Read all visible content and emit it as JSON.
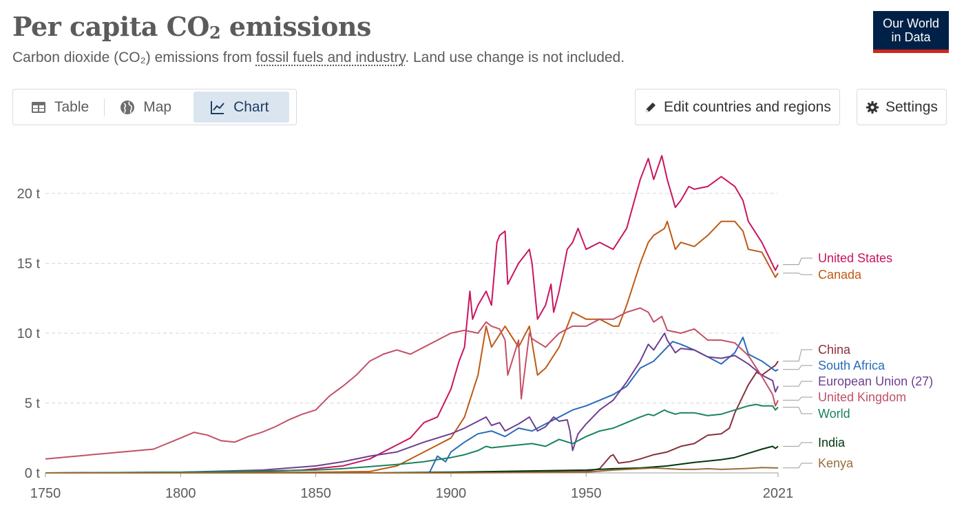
{
  "header": {
    "title_main": "Per capita CO",
    "title_sub": "2",
    "title_tail": " emissions",
    "subtitle_pre": "Carbon dioxide (CO₂) emissions from ",
    "subtitle_link": "fossil fuels and industry",
    "subtitle_post": ". Land use change is not included.",
    "logo_line1": "Our World",
    "logo_line2": "in Data"
  },
  "tabs": [
    {
      "label": "Table",
      "icon": "table-icon"
    },
    {
      "label": "Map",
      "icon": "globe-icon"
    },
    {
      "label": "Chart",
      "icon": "line-chart-icon",
      "active": true
    }
  ],
  "toolbar": {
    "edit_label": "Edit countries and regions",
    "settings_label": "Settings"
  },
  "chart_data": {
    "type": "line",
    "title": "Per capita CO₂ emissions",
    "xlim": [
      1750,
      2021
    ],
    "ylim": [
      0,
      23
    ],
    "x_ticks": [
      {
        "v": 1750,
        "label": "1750"
      },
      {
        "v": 1800,
        "label": "1800"
      },
      {
        "v": 1850,
        "label": "1850"
      },
      {
        "v": 1900,
        "label": "1900"
      },
      {
        "v": 1950,
        "label": "1950"
      },
      {
        "v": 2021,
        "label": "2021"
      }
    ],
    "y_ticks": [
      {
        "v": 0,
        "label": "0 t"
      },
      {
        "v": 5,
        "label": "5 t"
      },
      {
        "v": 10,
        "label": "10 t"
      },
      {
        "v": 15,
        "label": "15 t"
      },
      {
        "v": 20,
        "label": "20 t"
      }
    ],
    "grid": "horizontal dashed",
    "legend": "right, labels at line ends",
    "series": [
      {
        "name": "United States",
        "color": "#c9145f",
        "x": [
          1800,
          1830,
          1845,
          1860,
          1870,
          1880,
          1885,
          1890,
          1895,
          1900,
          1903,
          1905,
          1907,
          1908,
          1910,
          1913,
          1915,
          1917,
          1918,
          1920,
          1921,
          1925,
          1929,
          1930,
          1932,
          1935,
          1937,
          1938,
          1940,
          1943,
          1945,
          1947,
          1950,
          1955,
          1960,
          1965,
          1970,
          1973,
          1975,
          1978,
          1980,
          1983,
          1985,
          1988,
          1990,
          1995,
          2000,
          2005,
          2008,
          2010,
          2015,
          2020,
          2021
        ],
        "y": [
          0.05,
          0.1,
          0.2,
          0.5,
          1.0,
          2.0,
          2.5,
          3.6,
          4.0,
          6.0,
          8.0,
          9.0,
          13.0,
          11.0,
          12.0,
          13.0,
          12.0,
          16.5,
          17.0,
          17.3,
          13.5,
          15.0,
          16.0,
          15.0,
          11.0,
          12.0,
          13.5,
          11.5,
          13.0,
          16.0,
          16.5,
          17.5,
          16.0,
          16.5,
          16.0,
          17.5,
          21.0,
          22.5,
          21.0,
          22.7,
          21.0,
          19.0,
          19.5,
          20.5,
          20.3,
          20.5,
          21.2,
          20.5,
          19.5,
          18.0,
          16.5,
          14.5,
          14.9
        ]
      },
      {
        "name": "Canada",
        "color": "#be5915",
        "x": [
          1800,
          1850,
          1870,
          1880,
          1890,
          1900,
          1905,
          1910,
          1913,
          1915,
          1920,
          1925,
          1929,
          1932,
          1935,
          1940,
          1945,
          1950,
          1955,
          1960,
          1962,
          1965,
          1970,
          1973,
          1975,
          1979,
          1980,
          1983,
          1985,
          1990,
          1995,
          2000,
          2005,
          2008,
          2010,
          2015,
          2020,
          2021
        ],
        "y": [
          0.0,
          0.05,
          0.1,
          0.5,
          1.5,
          2.5,
          4.0,
          7.0,
          10.5,
          9.0,
          10.5,
          9.0,
          10.5,
          7.0,
          7.5,
          9.0,
          11.5,
          11.0,
          11.0,
          10.5,
          10.5,
          12.0,
          15.0,
          16.5,
          17.0,
          17.5,
          18.0,
          16.0,
          16.5,
          16.2,
          17.0,
          18.0,
          18.0,
          17.3,
          16.0,
          15.8,
          14.0,
          14.3
        ]
      },
      {
        "name": "China",
        "color": "#883039",
        "x": [
          1750,
          1900,
          1950,
          1955,
          1959,
          1960,
          1962,
          1966,
          1970,
          1975,
          1980,
          1985,
          1990,
          1995,
          2000,
          2003,
          2005,
          2010,
          2013,
          2015,
          2020,
          2021
        ],
        "y": [
          0.0,
          0.0,
          0.1,
          0.3,
          1.2,
          1.3,
          0.7,
          0.8,
          1.0,
          1.3,
          1.5,
          1.9,
          2.1,
          2.7,
          2.8,
          3.2,
          4.3,
          6.3,
          7.2,
          7.0,
          7.7,
          8.0
        ]
      },
      {
        "name": "South Africa",
        "color": "#286bbb",
        "x": [
          1750,
          1892,
          1895,
          1898,
          1900,
          1905,
          1910,
          1915,
          1920,
          1925,
          1930,
          1935,
          1940,
          1945,
          1950,
          1955,
          1960,
          1965,
          1970,
          1975,
          1980,
          1982,
          1985,
          1990,
          1995,
          2000,
          2005,
          2008,
          2010,
          2015,
          2020,
          2021
        ],
        "y": [
          0.0,
          0.0,
          1.2,
          0.8,
          1.5,
          2.2,
          2.8,
          3.0,
          2.6,
          3.2,
          3.0,
          3.5,
          4.0,
          4.5,
          4.8,
          5.2,
          5.6,
          6.2,
          7.5,
          8.0,
          9.0,
          9.4,
          9.2,
          8.8,
          8.3,
          7.8,
          8.6,
          9.7,
          8.5,
          8.0,
          7.3,
          7.4
        ]
      },
      {
        "name": "European Union (27)",
        "color": "#6d3e91",
        "x": [
          1750,
          1800,
          1830,
          1850,
          1860,
          1870,
          1880,
          1890,
          1900,
          1905,
          1910,
          1913,
          1915,
          1918,
          1920,
          1925,
          1929,
          1932,
          1935,
          1938,
          1940,
          1943,
          1944,
          1945,
          1947,
          1950,
          1955,
          1960,
          1965,
          1970,
          1973,
          1975,
          1979,
          1980,
          1983,
          1985,
          1990,
          1995,
          2000,
          2005,
          2010,
          2015,
          2019,
          2020,
          2021
        ],
        "y": [
          0.0,
          0.05,
          0.2,
          0.5,
          0.8,
          1.2,
          1.5,
          2.2,
          2.8,
          3.2,
          3.7,
          4.0,
          3.4,
          3.6,
          3.0,
          3.5,
          4.0,
          3.0,
          3.3,
          4.0,
          3.7,
          3.8,
          3.0,
          1.6,
          2.8,
          3.5,
          4.5,
          5.2,
          6.5,
          8.0,
          9.2,
          8.8,
          10.0,
          9.5,
          8.6,
          8.9,
          8.8,
          8.3,
          8.2,
          8.4,
          7.8,
          7.0,
          6.6,
          5.8,
          6.2
        ]
      },
      {
        "name": "United Kingdom",
        "color": "#c15065",
        "x": [
          1750,
          1790,
          1800,
          1805,
          1810,
          1815,
          1820,
          1825,
          1830,
          1835,
          1840,
          1845,
          1850,
          1855,
          1860,
          1865,
          1870,
          1875,
          1880,
          1885,
          1890,
          1895,
          1900,
          1905,
          1910,
          1913,
          1915,
          1918,
          1920,
          1921,
          1925,
          1926,
          1929,
          1930,
          1935,
          1940,
          1945,
          1950,
          1955,
          1960,
          1965,
          1970,
          1973,
          1975,
          1978,
          1980,
          1985,
          1990,
          1995,
          2000,
          2005,
          2010,
          2015,
          2019,
          2020,
          2021
        ],
        "y": [
          1.0,
          1.7,
          2.5,
          2.9,
          2.7,
          2.3,
          2.2,
          2.6,
          2.9,
          3.3,
          3.8,
          4.2,
          4.5,
          5.5,
          6.2,
          7.0,
          8.0,
          8.5,
          8.8,
          8.5,
          9.0,
          9.5,
          10.0,
          10.2,
          10.0,
          10.8,
          10.5,
          10.3,
          9.5,
          7.0,
          9.5,
          5.3,
          10.0,
          9.6,
          9.0,
          10.0,
          10.5,
          10.5,
          11.0,
          11.0,
          11.5,
          11.8,
          11.5,
          10.8,
          11.2,
          10.2,
          10.0,
          10.3,
          9.5,
          9.5,
          9.3,
          8.4,
          6.9,
          5.6,
          4.8,
          5.2
        ]
      },
      {
        "name": "World",
        "color": "#18825c",
        "x": [
          1750,
          1800,
          1850,
          1860,
          1870,
          1880,
          1890,
          1900,
          1905,
          1910,
          1913,
          1915,
          1920,
          1925,
          1930,
          1935,
          1940,
          1945,
          1950,
          1955,
          1960,
          1965,
          1970,
          1973,
          1975,
          1979,
          1980,
          1983,
          1985,
          1990,
          1995,
          2000,
          2005,
          2010,
          2013,
          2015,
          2019,
          2020,
          2021
        ],
        "y": [
          0.0,
          0.05,
          0.2,
          0.3,
          0.45,
          0.6,
          0.8,
          1.1,
          1.3,
          1.6,
          1.9,
          1.8,
          1.9,
          2.0,
          2.1,
          1.9,
          2.4,
          2.1,
          2.6,
          3.0,
          3.2,
          3.6,
          4.0,
          4.2,
          4.1,
          4.5,
          4.4,
          4.2,
          4.3,
          4.3,
          4.1,
          4.2,
          4.5,
          4.8,
          4.9,
          4.8,
          4.8,
          4.5,
          4.7
        ]
      },
      {
        "name": "India",
        "color": "#00360d",
        "x": [
          1750,
          1850,
          1870,
          1900,
          1950,
          1960,
          1970,
          1980,
          1990,
          2000,
          2005,
          2010,
          2015,
          2019,
          2020,
          2021
        ],
        "y": [
          0.0,
          0.0,
          0.0,
          0.05,
          0.2,
          0.3,
          0.35,
          0.5,
          0.75,
          0.95,
          1.1,
          1.4,
          1.7,
          1.9,
          1.75,
          1.9
        ]
      },
      {
        "name": "Kenya",
        "color": "#996d39",
        "x": [
          1750,
          1900,
          1950,
          1960,
          1970,
          1975,
          1980,
          1985,
          1990,
          1995,
          2000,
          2005,
          2010,
          2015,
          2020,
          2021
        ],
        "y": [
          0.0,
          0.0,
          0.05,
          0.2,
          0.3,
          0.35,
          0.3,
          0.25,
          0.25,
          0.3,
          0.25,
          0.28,
          0.32,
          0.38,
          0.36,
          0.36
        ]
      }
    ]
  }
}
